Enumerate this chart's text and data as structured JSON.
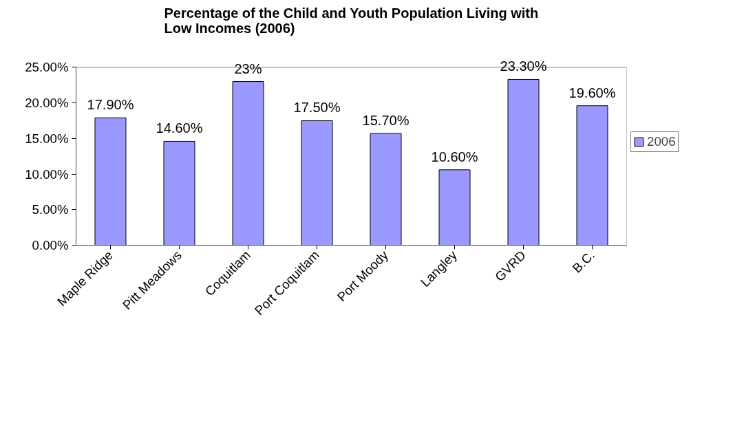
{
  "chart_data": {
    "type": "bar",
    "title": "Percentage of the Child and Youth Population Living with\nLow Incomes (2006)",
    "categories": [
      "Maple Ridge",
      "Pitt Meadows",
      "Coquitlam",
      "Port Coquitlam",
      "Port Moody",
      "Langley",
      "GVRD",
      "B.C."
    ],
    "series": [
      {
        "name": "2006",
        "color": "#9999ff",
        "values": [
          17.9,
          14.6,
          23,
          17.5,
          15.7,
          10.6,
          23.3,
          19.6
        ],
        "value_labels": [
          "17.90%",
          "14.60%",
          "23%",
          "17.50%",
          "15.70%",
          "10.60%",
          "23.30%",
          "19.60%"
        ]
      }
    ],
    "ylim": [
      0,
      25
    ],
    "yticks": [
      {
        "value": 0,
        "label": "0.00%"
      },
      {
        "value": 5,
        "label": "5.00%"
      },
      {
        "value": 10,
        "label": "10.00%"
      },
      {
        "value": 15,
        "label": "15.00%"
      },
      {
        "value": 20,
        "label": "20.00%"
      },
      {
        "value": 25,
        "label": "25.00%"
      }
    ],
    "grid": false,
    "legend": "right"
  }
}
